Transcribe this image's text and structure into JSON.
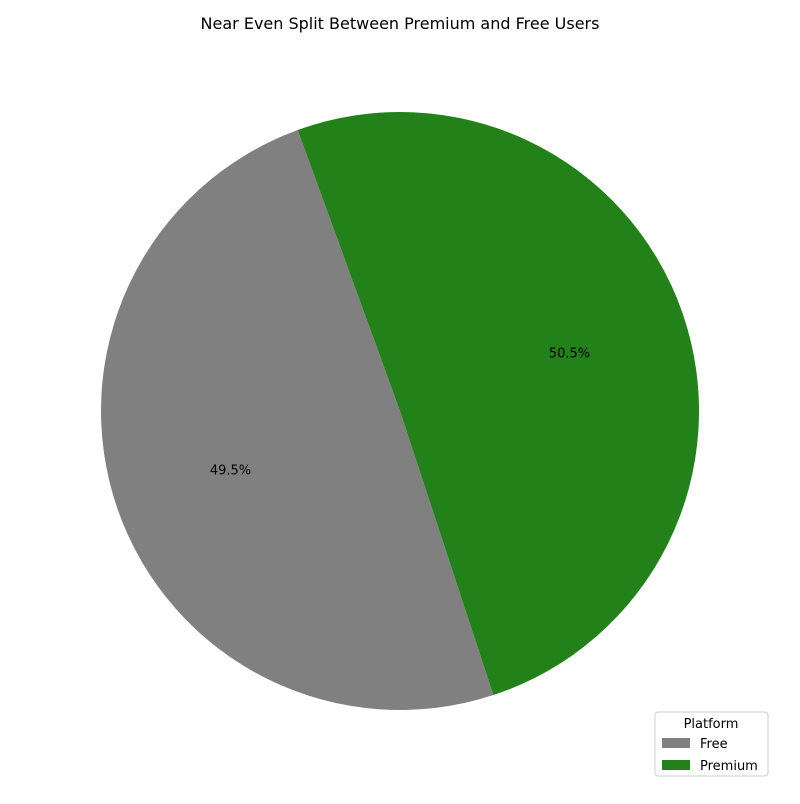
{
  "chart_data": {
    "type": "pie",
    "title": "Near Even Split Between Premium and Free Users",
    "slices": [
      {
        "label": "Free",
        "value": 49.5,
        "display": "49.5%",
        "color": "#808080"
      },
      {
        "label": "Premium",
        "value": 50.5,
        "display": "50.5%",
        "color": "#228119"
      }
    ],
    "legend": {
      "title": "Platform",
      "placement": "bottom-right",
      "entries": [
        "Free",
        "Premium"
      ]
    }
  }
}
